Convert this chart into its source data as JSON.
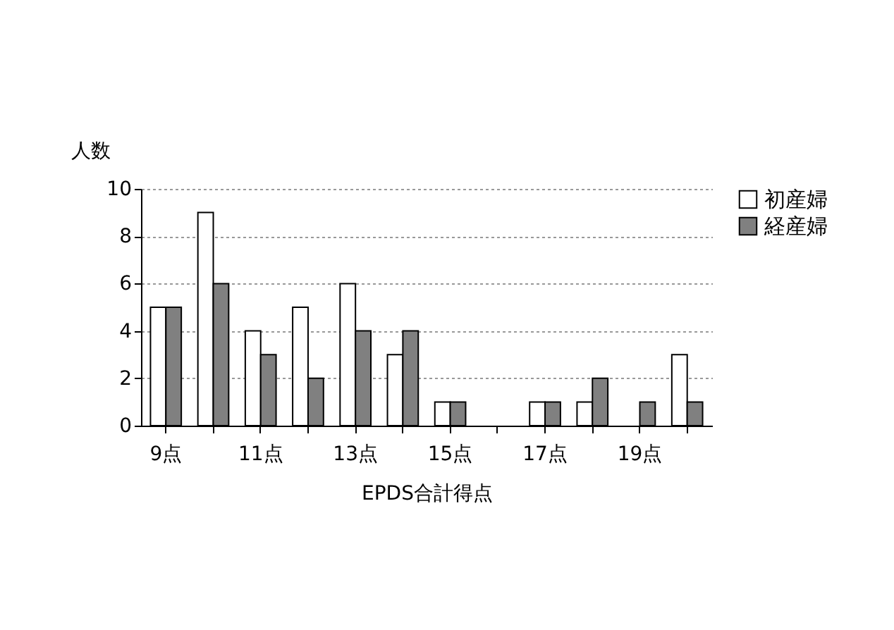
{
  "chart_data": {
    "type": "bar",
    "xlabel": "EPDS合計得点",
    "ylabel": "人数",
    "categories": [
      "9点",
      null,
      "11点",
      null,
      "13点",
      null,
      "15点",
      null,
      "17点",
      null,
      "19点",
      null
    ],
    "series": [
      {
        "name": "初産婦",
        "color": "#ffffff",
        "values": [
          5,
          9,
          4,
          5,
          6,
          3,
          1,
          0,
          1,
          1,
          0,
          3
        ]
      },
      {
        "name": "経産婦",
        "color": "#808080",
        "values": [
          5,
          6,
          3,
          2,
          4,
          4,
          1,
          0,
          1,
          2,
          1,
          1
        ]
      }
    ],
    "ylim": [
      0,
      10
    ],
    "yticks": [
      0,
      2,
      4,
      6,
      8,
      10
    ],
    "grid": "y",
    "legend": "right"
  }
}
